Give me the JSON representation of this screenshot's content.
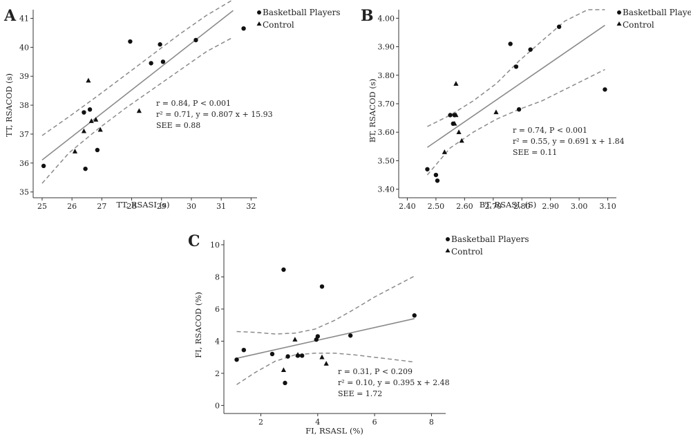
{
  "chart_data": [
    {
      "type": "scatter",
      "panel": "A",
      "xlabel": "TT, RSASI (s)",
      "ylabel": "TT, RSACOD (s)",
      "xlim": [
        24.7,
        32.2
      ],
      "ylim": [
        34.8,
        41.3
      ],
      "xticks": [
        25,
        26,
        27,
        28,
        29,
        30,
        31,
        32
      ],
      "yticks": [
        35,
        36,
        37,
        38,
        39,
        40,
        41
      ],
      "xtick_labels": [
        "25",
        "26",
        "27",
        "28",
        "29",
        "30",
        "31",
        "32"
      ],
      "ytick_labels": [
        "35",
        "36",
        "37",
        "38",
        "39",
        "40",
        "41"
      ],
      "legend": [
        "Basketball Players",
        "Control"
      ],
      "legend_position": "top-right",
      "stats": [
        "r = 0.84, P < 0.001",
        "r² = 0.71, y =  0.807 x + 15.93",
        "SEE = 0.88"
      ],
      "fit": {
        "slope": 0.807,
        "intercept": 15.93
      },
      "ci_band": {
        "x": [
          25.0,
          25.9,
          26.9,
          27.8,
          28.7,
          29.6,
          30.5,
          31.4
        ],
        "lower": [
          35.3,
          36.35,
          37.2,
          37.9,
          38.55,
          39.2,
          39.85,
          40.35
        ],
        "upper": [
          36.95,
          37.6,
          38.35,
          39.05,
          39.75,
          40.45,
          41.1,
          41.65
        ]
      },
      "series": [
        {
          "name": "Basketball Players",
          "marker": "circle",
          "x": [
            25.05,
            26.4,
            26.6,
            26.85,
            27.95,
            28.65,
            28.95,
            29.05,
            30.15,
            31.75,
            26.45
          ],
          "y": [
            35.9,
            37.75,
            37.85,
            36.45,
            40.2,
            39.45,
            40.1,
            39.5,
            40.25,
            40.65,
            35.8
          ]
        },
        {
          "name": "Control",
          "marker": "triangle",
          "x": [
            26.55,
            26.65,
            26.8,
            26.95,
            28.25,
            26.1,
            26.4
          ],
          "y": [
            38.85,
            37.45,
            37.5,
            37.15,
            37.8,
            36.4,
            37.1
          ]
        }
      ]
    },
    {
      "type": "scatter",
      "panel": "B",
      "xlabel": "BT, RSASL (S)",
      "ylabel": "BT, RSACOD (s)",
      "xlim": [
        2.37,
        3.13
      ],
      "ylim": [
        3.37,
        4.03
      ],
      "xticks": [
        2.4,
        2.5,
        2.6,
        2.7,
        2.8,
        2.9,
        3.0,
        3.1
      ],
      "yticks": [
        3.4,
        3.5,
        3.6,
        3.7,
        3.8,
        3.9,
        4.0
      ],
      "xtick_labels": [
        "2.40",
        "2.50",
        "2.60",
        "2.70",
        "2.80",
        "2.90",
        "3.00",
        "3.10"
      ],
      "ytick_labels": [
        "3.40",
        "3.50",
        "3.60",
        "3.70",
        "3.80",
        "3.90",
        "4.00"
      ],
      "legend": [
        "Basketball Players",
        "Control"
      ],
      "legend_position": "top-right",
      "stats": [
        "r = 0.74, P < 0.001",
        "r² = 0.55, y =  0.691 x + 1.84",
        "SEE = 0.11"
      ],
      "fit": {
        "slope": 0.691,
        "intercept": 1.84
      },
      "ci_band": {
        "x": [
          2.47,
          2.55,
          2.63,
          2.71,
          2.79,
          2.87,
          2.95,
          3.03,
          3.09
        ],
        "lower": [
          3.45,
          3.545,
          3.6,
          3.645,
          3.68,
          3.71,
          3.75,
          3.79,
          3.82
        ],
        "upper": [
          3.62,
          3.66,
          3.71,
          3.77,
          3.85,
          3.92,
          3.99,
          4.03,
          4.03
        ]
      },
      "series": [
        {
          "name": "Basketball Players",
          "marker": "circle",
          "x": [
            2.47,
            2.5,
            2.505,
            2.55,
            2.56,
            2.565,
            2.76,
            2.78,
            2.79,
            2.83,
            2.93,
            3.09
          ],
          "y": [
            3.47,
            3.45,
            3.43,
            3.66,
            3.63,
            3.66,
            3.91,
            3.83,
            3.68,
            3.89,
            3.97,
            3.75
          ]
        },
        {
          "name": "Control",
          "marker": "triangle",
          "x": [
            2.53,
            2.565,
            2.57,
            2.57,
            2.58,
            2.59,
            2.71
          ],
          "y": [
            3.53,
            3.63,
            3.77,
            3.66,
            3.6,
            3.57,
            3.67
          ]
        }
      ]
    },
    {
      "type": "scatter",
      "panel": "C",
      "xlabel": "FI, RSASL (%)",
      "ylabel": "FI, RSACOD (%)",
      "xlim": [
        0.7,
        8.5
      ],
      "ylim": [
        -0.5,
        10.3
      ],
      "xticks": [
        2,
        4,
        6,
        8
      ],
      "yticks": [
        0,
        2,
        4,
        6,
        8,
        10
      ],
      "xtick_labels": [
        "2",
        "4",
        "6",
        "8"
      ],
      "ytick_labels": [
        "0",
        "2",
        "4",
        "6",
        "8",
        "10"
      ],
      "legend": [
        "Basketball Players",
        "Control"
      ],
      "legend_position": "top-right",
      "stats": [
        "r = 0.31, P < 0.209",
        "r² = 0.10, y =  0.395 x + 2.48",
        "SEE = 1.72"
      ],
      "fit": {
        "slope": 0.395,
        "intercept": 2.48
      },
      "ci_band": {
        "x": [
          1.15,
          1.8,
          2.5,
          3.2,
          3.9,
          4.6,
          5.3,
          6.0,
          6.7,
          7.4
        ],
        "lower": [
          1.3,
          2.05,
          2.75,
          3.15,
          3.25,
          3.25,
          3.15,
          3.0,
          2.85,
          2.7
        ],
        "upper": [
          4.6,
          4.55,
          4.45,
          4.5,
          4.75,
          5.3,
          6.0,
          6.75,
          7.4,
          8.05
        ]
      },
      "series": [
        {
          "name": "Basketball Players",
          "marker": "circle",
          "x": [
            1.15,
            1.4,
            2.4,
            2.8,
            2.85,
            2.95,
            3.3,
            3.45,
            3.95,
            4.0,
            4.15,
            5.15,
            7.4
          ],
          "y": [
            2.85,
            3.45,
            3.2,
            8.45,
            1.4,
            3.05,
            3.1,
            3.1,
            4.1,
            4.3,
            7.4,
            4.35,
            5.6
          ]
        },
        {
          "name": "Control",
          "marker": "triangle",
          "x": [
            2.8,
            3.2,
            3.3,
            4.15,
            4.3
          ],
          "y": [
            2.2,
            4.1,
            3.15,
            3.0,
            2.6
          ]
        }
      ]
    }
  ]
}
